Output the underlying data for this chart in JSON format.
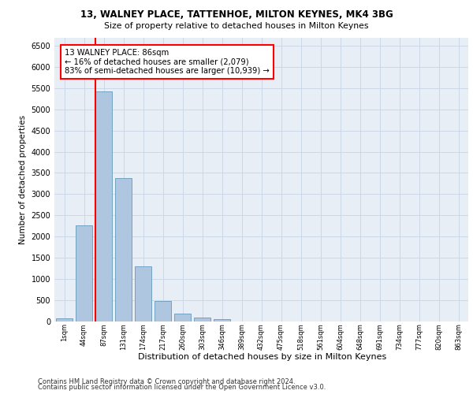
{
  "title1": "13, WALNEY PLACE, TATTENHOE, MILTON KEYNES, MK4 3BG",
  "title2": "Size of property relative to detached houses in Milton Keynes",
  "xlabel": "Distribution of detached houses by size in Milton Keynes",
  "ylabel": "Number of detached properties",
  "footer1": "Contains HM Land Registry data © Crown copyright and database right 2024.",
  "footer2": "Contains public sector information licensed under the Open Government Licence v3.0.",
  "categories": [
    "1sqm",
    "44sqm",
    "87sqm",
    "131sqm",
    "174sqm",
    "217sqm",
    "260sqm",
    "303sqm",
    "346sqm",
    "389sqm",
    "432sqm",
    "475sqm",
    "518sqm",
    "561sqm",
    "604sqm",
    "648sqm",
    "691sqm",
    "734sqm",
    "777sqm",
    "820sqm",
    "863sqm"
  ],
  "values": [
    70,
    2270,
    5430,
    3380,
    1290,
    480,
    185,
    85,
    55,
    0,
    0,
    0,
    0,
    0,
    0,
    0,
    0,
    0,
    0,
    0,
    0
  ],
  "bar_color": "#aec6df",
  "bar_edge_color": "#6699bb",
  "grid_color": "#ccd8e8",
  "background_color": "#e8eef6",
  "vline_color": "red",
  "vline_x_index": 2,
  "annotation_title": "13 WALNEY PLACE: 86sqm",
  "annotation_line1": "← 16% of detached houses are smaller (2,079)",
  "annotation_line2": "83% of semi-detached houses are larger (10,939) →",
  "annotation_box_color": "white",
  "annotation_box_edge": "red",
  "ylim": [
    0,
    6700
  ],
  "yticks": [
    0,
    500,
    1000,
    1500,
    2000,
    2500,
    3000,
    3500,
    4000,
    4500,
    5000,
    5500,
    6000,
    6500
  ]
}
